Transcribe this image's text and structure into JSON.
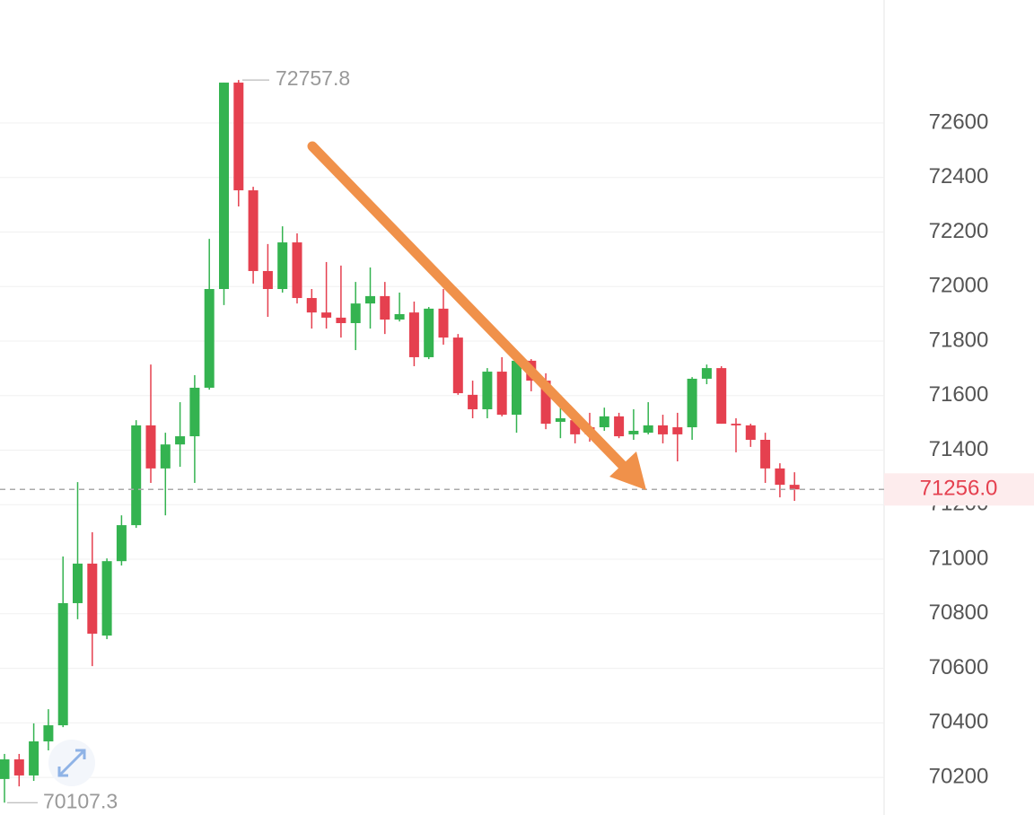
{
  "chart_data": {
    "type": "candlestick",
    "up_color": "#34b350",
    "down_color": "#e5404f",
    "grid": true,
    "ylim": [
      70062,
      73051
    ],
    "yticks": [
      70200,
      70400,
      70600,
      70800,
      71000,
      71200,
      71400,
      71600,
      71800,
      72000,
      72200,
      72400,
      72600
    ],
    "open": [
      70194,
      70266,
      70207,
      70332,
      70391,
      70839,
      70984,
      70720,
      70993,
      71125,
      71491,
      71333,
      71421,
      71451,
      71629,
      71991,
      72748,
      72353,
      72057,
      71991,
      72162,
      71958,
      71905,
      71886,
      71866,
      71938,
      71965,
      71879,
      71905,
      71741,
      71919,
      71813,
      71603,
      71550,
      71688,
      71530,
      71728,
      71655,
      71504,
      71510,
      71484,
      71484,
      71524,
      71458,
      71464,
      71491,
      71484,
      71484,
      71662,
      71701,
      71497,
      71491,
      71438,
      71333,
      71273
    ],
    "high": [
      70286,
      70286,
      70398,
      70450,
      71010,
      71283,
      71099,
      71003,
      71161,
      71510,
      71714,
      71464,
      71576,
      71675,
      72175,
      72748,
      72757.8,
      72366,
      72156,
      72221,
      72195,
      71991,
      72090,
      72077,
      72017,
      72070,
      72017,
      71978,
      71945,
      71925,
      71991,
      71826,
      71655,
      71701,
      71741,
      71734,
      71734,
      71682,
      71603,
      71530,
      71537,
      71556,
      71537,
      71550,
      71576,
      71530,
      71537,
      71668,
      71714,
      71708,
      71517,
      71497,
      71464,
      71352,
      71319
    ],
    "low": [
      70107.3,
      70167,
      70187,
      70299,
      70384,
      70780,
      70608,
      70707,
      70977,
      71115,
      71280,
      71161,
      71339,
      71280,
      71622,
      71932,
      72294,
      72011,
      71889,
      71978,
      71938,
      71846,
      71846,
      71813,
      71767,
      71846,
      71826,
      71872,
      71708,
      71734,
      71787,
      71603,
      71517,
      71517,
      71524,
      71464,
      71616,
      71477,
      71444,
      71425,
      71431,
      71471,
      71444,
      71438,
      71458,
      71425,
      71359,
      71438,
      71642,
      71497,
      71392,
      71412,
      71280,
      71227,
      71214
    ],
    "close": [
      70266,
      70207,
      70332,
      70391,
      70839,
      70984,
      70727,
      70993,
      71125,
      71491,
      71333,
      71421,
      71451,
      71629,
      71991,
      72748,
      72353,
      72057,
      71991,
      72162,
      71958,
      71905,
      71886,
      71866,
      71938,
      71965,
      71879,
      71899,
      71741,
      71919,
      71813,
      71609,
      71550,
      71688,
      71530,
      71728,
      71655,
      71497,
      71517,
      71458,
      71458,
      71524,
      71451,
      71471,
      71491,
      71458,
      71458,
      71662,
      71701,
      71497,
      71491,
      71438,
      71333,
      71273,
      71256
    ],
    "high_marker": 72757.8,
    "low_marker": 70107.3,
    "last_price": {
      "value": 71256,
      "label": "71256.0"
    }
  }
}
